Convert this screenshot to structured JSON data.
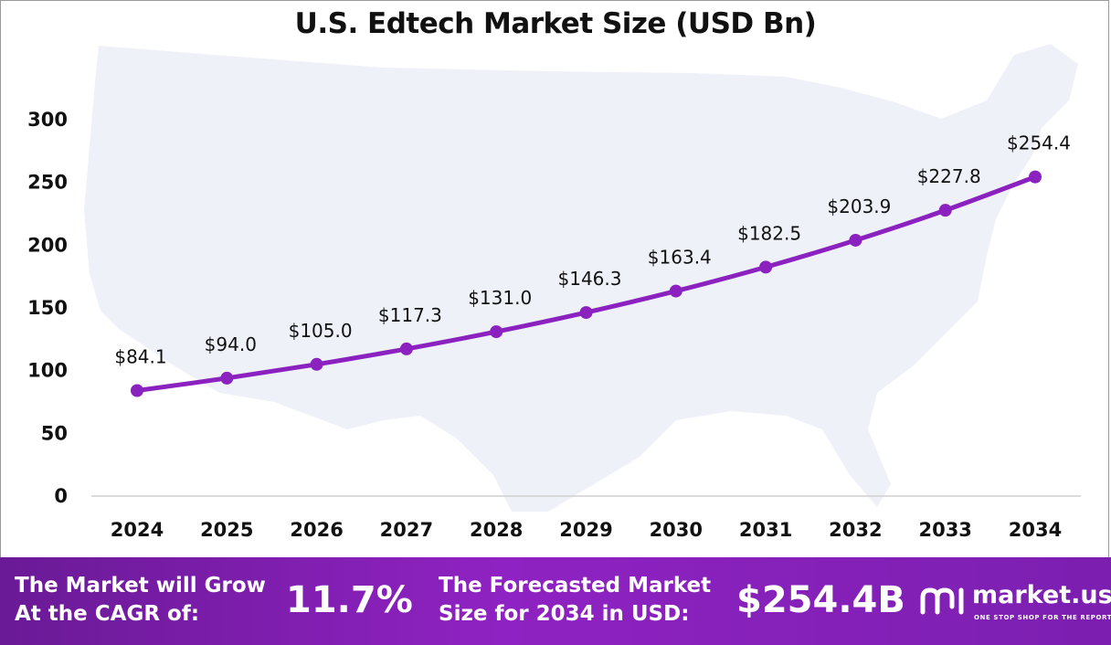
{
  "chart_data": {
    "type": "line",
    "title": "U.S. Edtech Market Size (USD Bn)",
    "categories": [
      "2024",
      "2025",
      "2026",
      "2027",
      "2028",
      "2029",
      "2030",
      "2031",
      "2032",
      "2033",
      "2034"
    ],
    "values": [
      84.1,
      94.0,
      105.0,
      117.3,
      131.0,
      146.3,
      163.4,
      182.5,
      203.9,
      227.8,
      254.4
    ],
    "data_labels": [
      "$84.1",
      "$94.0",
      "$105.0",
      "$117.3",
      "$131.0",
      "$146.3",
      "$163.4",
      "$182.5",
      "$203.9",
      "$227.8",
      "$254.4"
    ],
    "ylim": [
      0,
      300
    ],
    "yticks": [
      0,
      50,
      100,
      150,
      200,
      250,
      300
    ],
    "grid": false,
    "legend": "none",
    "line_color": "#8b22c0",
    "background": "united-states-map-silhouette"
  },
  "footer": {
    "cagr_label_line1": "The Market will Grow",
    "cagr_label_line2": "At the CAGR of:",
    "cagr_value": "11.7%",
    "forecast_label_line1": "The Forecasted Market",
    "forecast_label_line2": "Size for 2034 in USD:",
    "forecast_value": "$254.4B",
    "brand_name": "market.us",
    "brand_tagline": "ONE STOP SHOP FOR THE REPORTS",
    "brand_icon": "market-us-logo-icon"
  }
}
